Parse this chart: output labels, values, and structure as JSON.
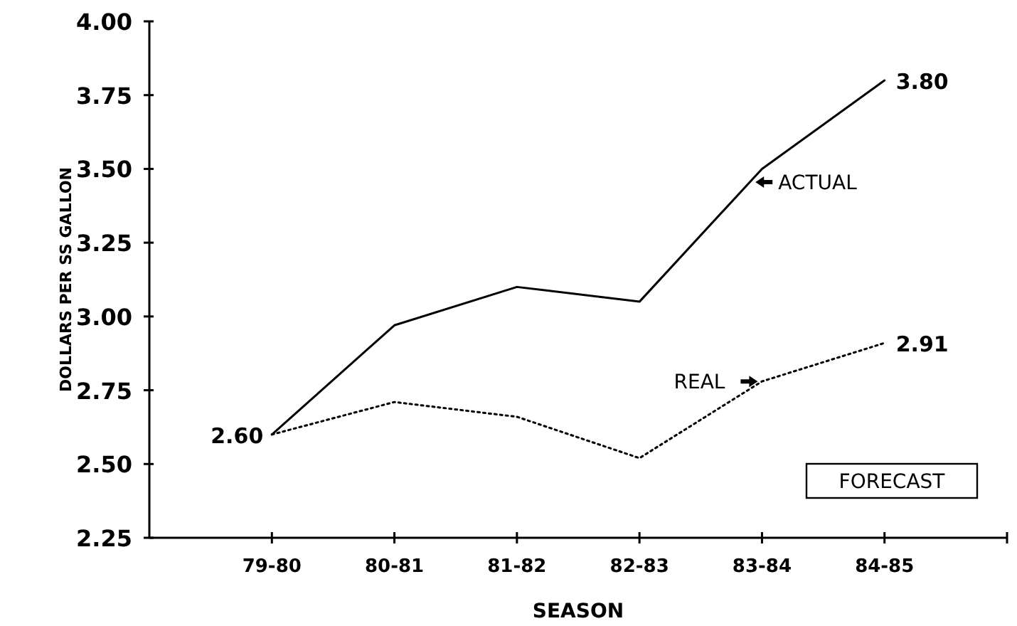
{
  "chart_data": {
    "type": "line",
    "xlabel": "SEASON",
    "ylabel": "DOLLARS PER SS GALLON",
    "categories": [
      "79-80",
      "80-81",
      "81-82",
      "82-83",
      "83-84",
      "84-85"
    ],
    "series": [
      {
        "name": "ACTUAL",
        "color": "#000000",
        "line_style": "solid",
        "values": [
          2.6,
          2.97,
          3.1,
          3.05,
          3.5,
          3.8
        ],
        "value_labels": [
          "2.60",
          null,
          null,
          null,
          null,
          "3.80"
        ]
      },
      {
        "name": "REAL",
        "color": "#000000",
        "line_style": "dotted",
        "values": [
          2.6,
          2.71,
          2.66,
          2.52,
          2.78,
          2.91
        ],
        "value_labels": [
          null,
          null,
          null,
          null,
          null,
          "2.91"
        ]
      }
    ],
    "ylim": [
      2.25,
      4.0
    ],
    "yticks": [
      "2.25",
      "2.50",
      "2.75",
      "3.00",
      "3.25",
      "3.50",
      "3.75",
      "4.00"
    ],
    "annotations": [
      "FORECAST"
    ],
    "grid": false,
    "marker": "none"
  }
}
